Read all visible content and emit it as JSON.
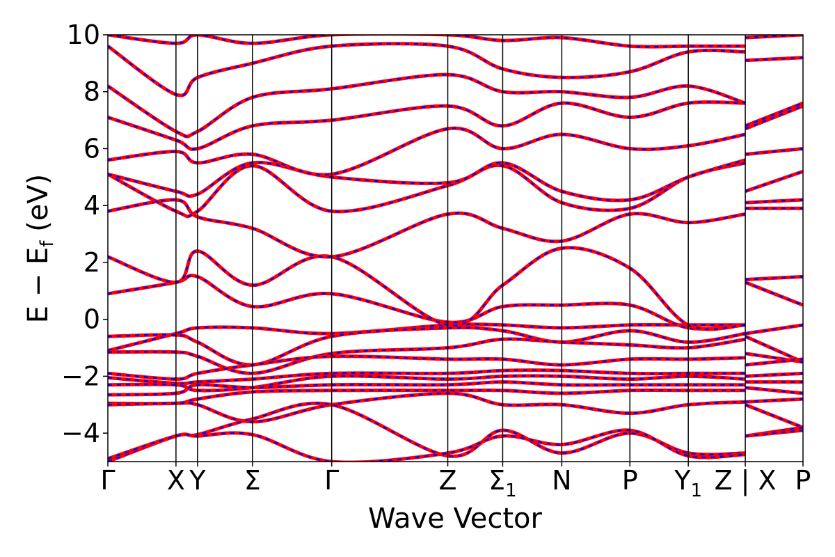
{
  "chart_data": {
    "type": "line",
    "title": "",
    "xlabel": "Wave Vector",
    "ylabel": "E − E",
    "ylabel_sub": "f",
    "ylabel_unit": " (eV)",
    "ylim": [
      -5,
      10
    ],
    "xlim": [
      0,
      1
    ],
    "y_ticks": [
      -4,
      -2,
      0,
      2,
      4,
      6,
      8,
      10
    ],
    "y_tick_labels": [
      "−4",
      "−2",
      "0",
      "2",
      "4",
      "6",
      "8",
      "10"
    ],
    "k_points": [
      {
        "label": "Γ",
        "x": 0.0,
        "sub": ""
      },
      {
        "label": "X",
        "x": 0.098,
        "sub": ""
      },
      {
        "label": "Y",
        "x": 0.129,
        "sub": ""
      },
      {
        "label": "Σ",
        "x": 0.208,
        "sub": ""
      },
      {
        "label": "Γ",
        "x": 0.322,
        "sub": ""
      },
      {
        "label": "Z",
        "x": 0.489,
        "sub": ""
      },
      {
        "label": "Σ",
        "x": 0.568,
        "sub": "1"
      },
      {
        "label": "N",
        "x": 0.653,
        "sub": ""
      },
      {
        "label": "P",
        "x": 0.751,
        "sub": ""
      },
      {
        "label": "Y",
        "x": 0.835,
        "sub": "1"
      },
      {
        "label": "Z | X",
        "x": 0.917,
        "sub": ""
      },
      {
        "label": "P",
        "x": 1.0,
        "sub": ""
      }
    ],
    "grid": false,
    "legend": "none",
    "series_colors": {
      "solid": "#ff0000",
      "dashed": "#0000ff"
    },
    "series": [
      {
        "points": [
          [
            0,
            -1.1
          ],
          [
            0.098,
            -0.5
          ],
          [
            0.129,
            -0.3
          ],
          [
            0.208,
            -0.3
          ],
          [
            0.322,
            -0.5
          ],
          [
            0.489,
            -0.2
          ],
          [
            0.568,
            -0.2
          ],
          [
            0.653,
            -0.3
          ],
          [
            0.751,
            -0.2
          ],
          [
            0.835,
            -0.2
          ],
          [
            0.917,
            -0.2
          ],
          [
            0.917,
            -0.5
          ],
          [
            1.0,
            -0.2
          ]
        ]
      },
      {
        "points": [
          [
            0,
            -0.6
          ],
          [
            0.098,
            -0.55
          ],
          [
            0.129,
            -0.8
          ],
          [
            0.208,
            -1.6
          ],
          [
            0.322,
            -0.6
          ],
          [
            0.489,
            -0.3
          ],
          [
            0.568,
            -0.4
          ],
          [
            0.653,
            -0.8
          ],
          [
            0.751,
            -0.4
          ],
          [
            0.835,
            -0.8
          ],
          [
            0.917,
            -0.5
          ],
          [
            0.917,
            -0.6
          ],
          [
            1.0,
            -1.5
          ]
        ]
      },
      {
        "points": [
          [
            0,
            -1.15
          ],
          [
            0.098,
            -1.15
          ],
          [
            0.129,
            -1.3
          ],
          [
            0.208,
            -1.9
          ],
          [
            0.322,
            -1.2
          ],
          [
            0.489,
            -1.0
          ],
          [
            0.568,
            -0.7
          ],
          [
            0.653,
            -0.8
          ],
          [
            0.751,
            -0.9
          ],
          [
            0.835,
            -1.0
          ],
          [
            0.917,
            -0.7
          ],
          [
            0.917,
            -1.2
          ],
          [
            1.0,
            -1.5
          ]
        ]
      },
      {
        "points": [
          [
            0,
            -1.9
          ],
          [
            0.098,
            -2.1
          ],
          [
            0.129,
            -1.9
          ],
          [
            0.208,
            -1.6
          ],
          [
            0.322,
            -1.3
          ],
          [
            0.489,
            -1.4
          ],
          [
            0.568,
            -1.4
          ],
          [
            0.653,
            -1.6
          ],
          [
            0.751,
            -1.4
          ],
          [
            0.835,
            -1.4
          ],
          [
            0.917,
            -1.35
          ],
          [
            0.917,
            -1.6
          ],
          [
            1.0,
            -1.4
          ]
        ]
      },
      {
        "points": [
          [
            0,
            -2.05
          ],
          [
            0.098,
            -2.25
          ],
          [
            0.129,
            -2.2
          ],
          [
            0.208,
            -2.1
          ],
          [
            0.322,
            -1.9
          ],
          [
            0.489,
            -1.9
          ],
          [
            0.568,
            -1.8
          ],
          [
            0.653,
            -1.8
          ],
          [
            0.751,
            -1.9
          ],
          [
            0.835,
            -1.9
          ],
          [
            0.917,
            -1.9
          ],
          [
            0.917,
            -2.0
          ],
          [
            1.0,
            -1.9
          ]
        ]
      },
      {
        "points": [
          [
            0,
            -2.3
          ],
          [
            0.098,
            -2.3
          ],
          [
            0.129,
            -2.5
          ],
          [
            0.208,
            -2.4
          ],
          [
            0.322,
            -2.0
          ],
          [
            0.489,
            -2.1
          ],
          [
            0.568,
            -2.0
          ],
          [
            0.653,
            -2.0
          ],
          [
            0.751,
            -2.1
          ],
          [
            0.835,
            -2.0
          ],
          [
            0.917,
            -2.1
          ],
          [
            0.917,
            -2.2
          ],
          [
            1.0,
            -2.2
          ]
        ]
      },
      {
        "points": [
          [
            0,
            -2.65
          ],
          [
            0.098,
            -2.6
          ],
          [
            0.129,
            -2.3
          ],
          [
            0.208,
            -2.4
          ],
          [
            0.322,
            -2.3
          ],
          [
            0.489,
            -2.3
          ],
          [
            0.568,
            -2.2
          ],
          [
            0.653,
            -2.3
          ],
          [
            0.751,
            -2.3
          ],
          [
            0.835,
            -2.3
          ],
          [
            0.917,
            -2.3
          ],
          [
            0.917,
            -2.4
          ],
          [
            1.0,
            -2.6
          ]
        ]
      },
      {
        "points": [
          [
            0,
            -2.95
          ],
          [
            0.098,
            -2.95
          ],
          [
            0.129,
            -2.8
          ],
          [
            0.208,
            -2.55
          ],
          [
            0.322,
            -2.5
          ],
          [
            0.489,
            -2.5
          ],
          [
            0.568,
            -2.5
          ],
          [
            0.653,
            -2.6
          ],
          [
            0.751,
            -2.5
          ],
          [
            0.835,
            -2.5
          ],
          [
            0.917,
            -2.5
          ],
          [
            0.917,
            -2.9
          ],
          [
            1.0,
            -2.8
          ]
        ]
      },
      {
        "points": [
          [
            0,
            -3.0
          ],
          [
            0.098,
            -2.95
          ],
          [
            0.129,
            -3.0
          ],
          [
            0.208,
            -3.6
          ],
          [
            0.322,
            -3.0
          ],
          [
            0.489,
            -2.6
          ],
          [
            0.568,
            -3.0
          ],
          [
            0.653,
            -3.0
          ],
          [
            0.751,
            -3.3
          ],
          [
            0.835,
            -3.0
          ],
          [
            0.917,
            -2.9
          ],
          [
            0.917,
            -3.0
          ],
          [
            1.0,
            -3.8
          ]
        ]
      },
      {
        "points": [
          [
            0,
            -5.0
          ],
          [
            0.098,
            -4.1
          ],
          [
            0.129,
            -4.05
          ],
          [
            0.208,
            -3.5
          ],
          [
            0.322,
            -3.0
          ],
          [
            0.489,
            -4.8
          ],
          [
            0.568,
            -3.9
          ],
          [
            0.653,
            -4.7
          ],
          [
            0.751,
            -4.0
          ],
          [
            0.835,
            -4.7
          ],
          [
            0.917,
            -4.7
          ],
          [
            0.917,
            -4.1
          ],
          [
            1.0,
            -3.8
          ]
        ]
      },
      {
        "points": [
          [
            0,
            -4.9
          ],
          [
            0.098,
            -4.1
          ],
          [
            0.129,
            -4.1
          ],
          [
            0.208,
            -4.05
          ],
          [
            0.322,
            -5.0
          ],
          [
            0.489,
            -4.7
          ],
          [
            0.568,
            -4.1
          ],
          [
            0.653,
            -4.4
          ],
          [
            0.751,
            -3.9
          ],
          [
            0.835,
            -4.8
          ],
          [
            0.917,
            -4.75
          ],
          [
            0.917,
            -4.1
          ],
          [
            1.0,
            -3.9
          ]
        ]
      },
      {
        "points": [
          [
            0,
            0.9
          ],
          [
            0.098,
            1.3
          ],
          [
            0.129,
            1.5
          ],
          [
            0.208,
            0.45
          ],
          [
            0.322,
            0.9
          ],
          [
            0.489,
            -0.1
          ],
          [
            0.568,
            0.45
          ],
          [
            0.653,
            0.5
          ],
          [
            0.751,
            0.5
          ],
          [
            0.835,
            -0.3
          ],
          [
            0.917,
            -0.2
          ],
          [
            0.917,
            1.3
          ],
          [
            1.0,
            0.5
          ]
        ]
      },
      {
        "points": [
          [
            0,
            2.2
          ],
          [
            0.098,
            1.3
          ],
          [
            0.129,
            2.4
          ],
          [
            0.208,
            1.2
          ],
          [
            0.322,
            2.2
          ],
          [
            0.489,
            -0.2
          ],
          [
            0.568,
            1.2
          ],
          [
            0.653,
            2.5
          ],
          [
            0.751,
            1.8
          ],
          [
            0.835,
            -0.2
          ],
          [
            0.917,
            -0.2
          ],
          [
            0.917,
            1.4
          ],
          [
            1.0,
            1.5
          ]
        ]
      },
      {
        "points": [
          [
            0,
            3.8
          ],
          [
            0.098,
            4.2
          ],
          [
            0.129,
            3.6
          ],
          [
            0.208,
            3.2
          ],
          [
            0.322,
            2.2
          ],
          [
            0.489,
            3.7
          ],
          [
            0.568,
            3.2
          ],
          [
            0.653,
            2.75
          ],
          [
            0.751,
            3.7
          ],
          [
            0.835,
            3.4
          ],
          [
            0.917,
            3.7
          ],
          [
            0.917,
            3.9
          ],
          [
            1.0,
            3.9
          ]
        ]
      },
      {
        "points": [
          [
            0,
            5.1
          ],
          [
            0.098,
            3.8
          ],
          [
            0.129,
            3.8
          ],
          [
            0.208,
            5.4
          ],
          [
            0.322,
            3.8
          ],
          [
            0.489,
            4.7
          ],
          [
            0.568,
            5.4
          ],
          [
            0.653,
            4.1
          ],
          [
            0.751,
            3.9
          ],
          [
            0.835,
            5.0
          ],
          [
            0.917,
            5.5
          ],
          [
            0.917,
            4.1
          ],
          [
            1.0,
            4.2
          ]
        ]
      },
      {
        "points": [
          [
            0,
            5.1
          ],
          [
            0.098,
            4.5
          ],
          [
            0.129,
            4.4
          ],
          [
            0.208,
            5.5
          ],
          [
            0.322,
            5.0
          ],
          [
            0.489,
            4.8
          ],
          [
            0.568,
            5.5
          ],
          [
            0.653,
            4.5
          ],
          [
            0.751,
            4.2
          ],
          [
            0.835,
            5.0
          ],
          [
            0.917,
            5.6
          ],
          [
            0.917,
            4.5
          ],
          [
            1.0,
            5.2
          ]
        ]
      },
      {
        "points": [
          [
            0,
            5.6
          ],
          [
            0.098,
            5.9
          ],
          [
            0.129,
            5.5
          ],
          [
            0.208,
            5.8
          ],
          [
            0.322,
            5.1
          ],
          [
            0.489,
            6.7
          ],
          [
            0.568,
            6.0
          ],
          [
            0.653,
            6.5
          ],
          [
            0.751,
            6.0
          ],
          [
            0.835,
            6.1
          ],
          [
            0.917,
            6.5
          ],
          [
            0.917,
            5.8
          ],
          [
            1.0,
            6.0
          ]
        ]
      },
      {
        "points": [
          [
            0,
            7.1
          ],
          [
            0.098,
            6.3
          ],
          [
            0.129,
            6.0
          ],
          [
            0.208,
            6.8
          ],
          [
            0.322,
            7.0
          ],
          [
            0.489,
            7.5
          ],
          [
            0.568,
            6.8
          ],
          [
            0.653,
            7.6
          ],
          [
            0.751,
            7.1
          ],
          [
            0.835,
            7.6
          ],
          [
            0.917,
            7.6
          ],
          [
            0.917,
            6.7
          ],
          [
            1.0,
            7.5
          ]
        ]
      },
      {
        "points": [
          [
            0,
            8.2
          ],
          [
            0.098,
            6.6
          ],
          [
            0.129,
            6.6
          ],
          [
            0.208,
            7.8
          ],
          [
            0.322,
            8.1
          ],
          [
            0.489,
            8.6
          ],
          [
            0.568,
            8.0
          ],
          [
            0.653,
            8.0
          ],
          [
            0.751,
            7.8
          ],
          [
            0.835,
            8.2
          ],
          [
            0.917,
            7.6
          ],
          [
            0.917,
            6.8
          ],
          [
            1.0,
            7.6
          ]
        ]
      },
      {
        "points": [
          [
            0,
            9.6
          ],
          [
            0.098,
            7.9
          ],
          [
            0.129,
            8.5
          ],
          [
            0.208,
            9.0
          ],
          [
            0.322,
            9.6
          ],
          [
            0.489,
            9.6
          ],
          [
            0.568,
            8.8
          ],
          [
            0.653,
            8.5
          ],
          [
            0.751,
            8.7
          ],
          [
            0.835,
            9.4
          ],
          [
            0.917,
            9.4
          ],
          [
            0.917,
            9.1
          ],
          [
            1.0,
            9.2
          ]
        ]
      },
      {
        "points": [
          [
            0,
            10.0
          ],
          [
            0.098,
            9.7
          ],
          [
            0.129,
            10.0
          ],
          [
            0.208,
            9.7
          ],
          [
            0.322,
            10.0
          ],
          [
            0.489,
            10.0
          ],
          [
            0.568,
            9.8
          ],
          [
            0.653,
            9.9
          ],
          [
            0.751,
            9.6
          ],
          [
            0.835,
            9.6
          ],
          [
            0.917,
            9.6
          ],
          [
            0.917,
            9.9
          ],
          [
            1.0,
            10.0
          ]
        ]
      }
    ]
  }
}
